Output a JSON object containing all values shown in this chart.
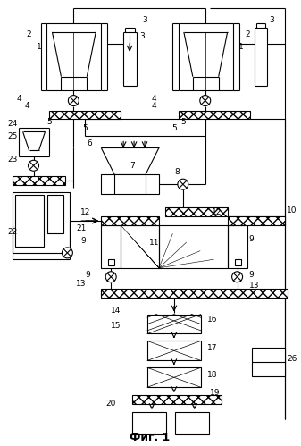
{
  "title": "Фиг. 1",
  "bg_color": "#ffffff",
  "line_color": "#000000",
  "fig_width": 3.37,
  "fig_height": 4.99,
  "dpi": 100
}
